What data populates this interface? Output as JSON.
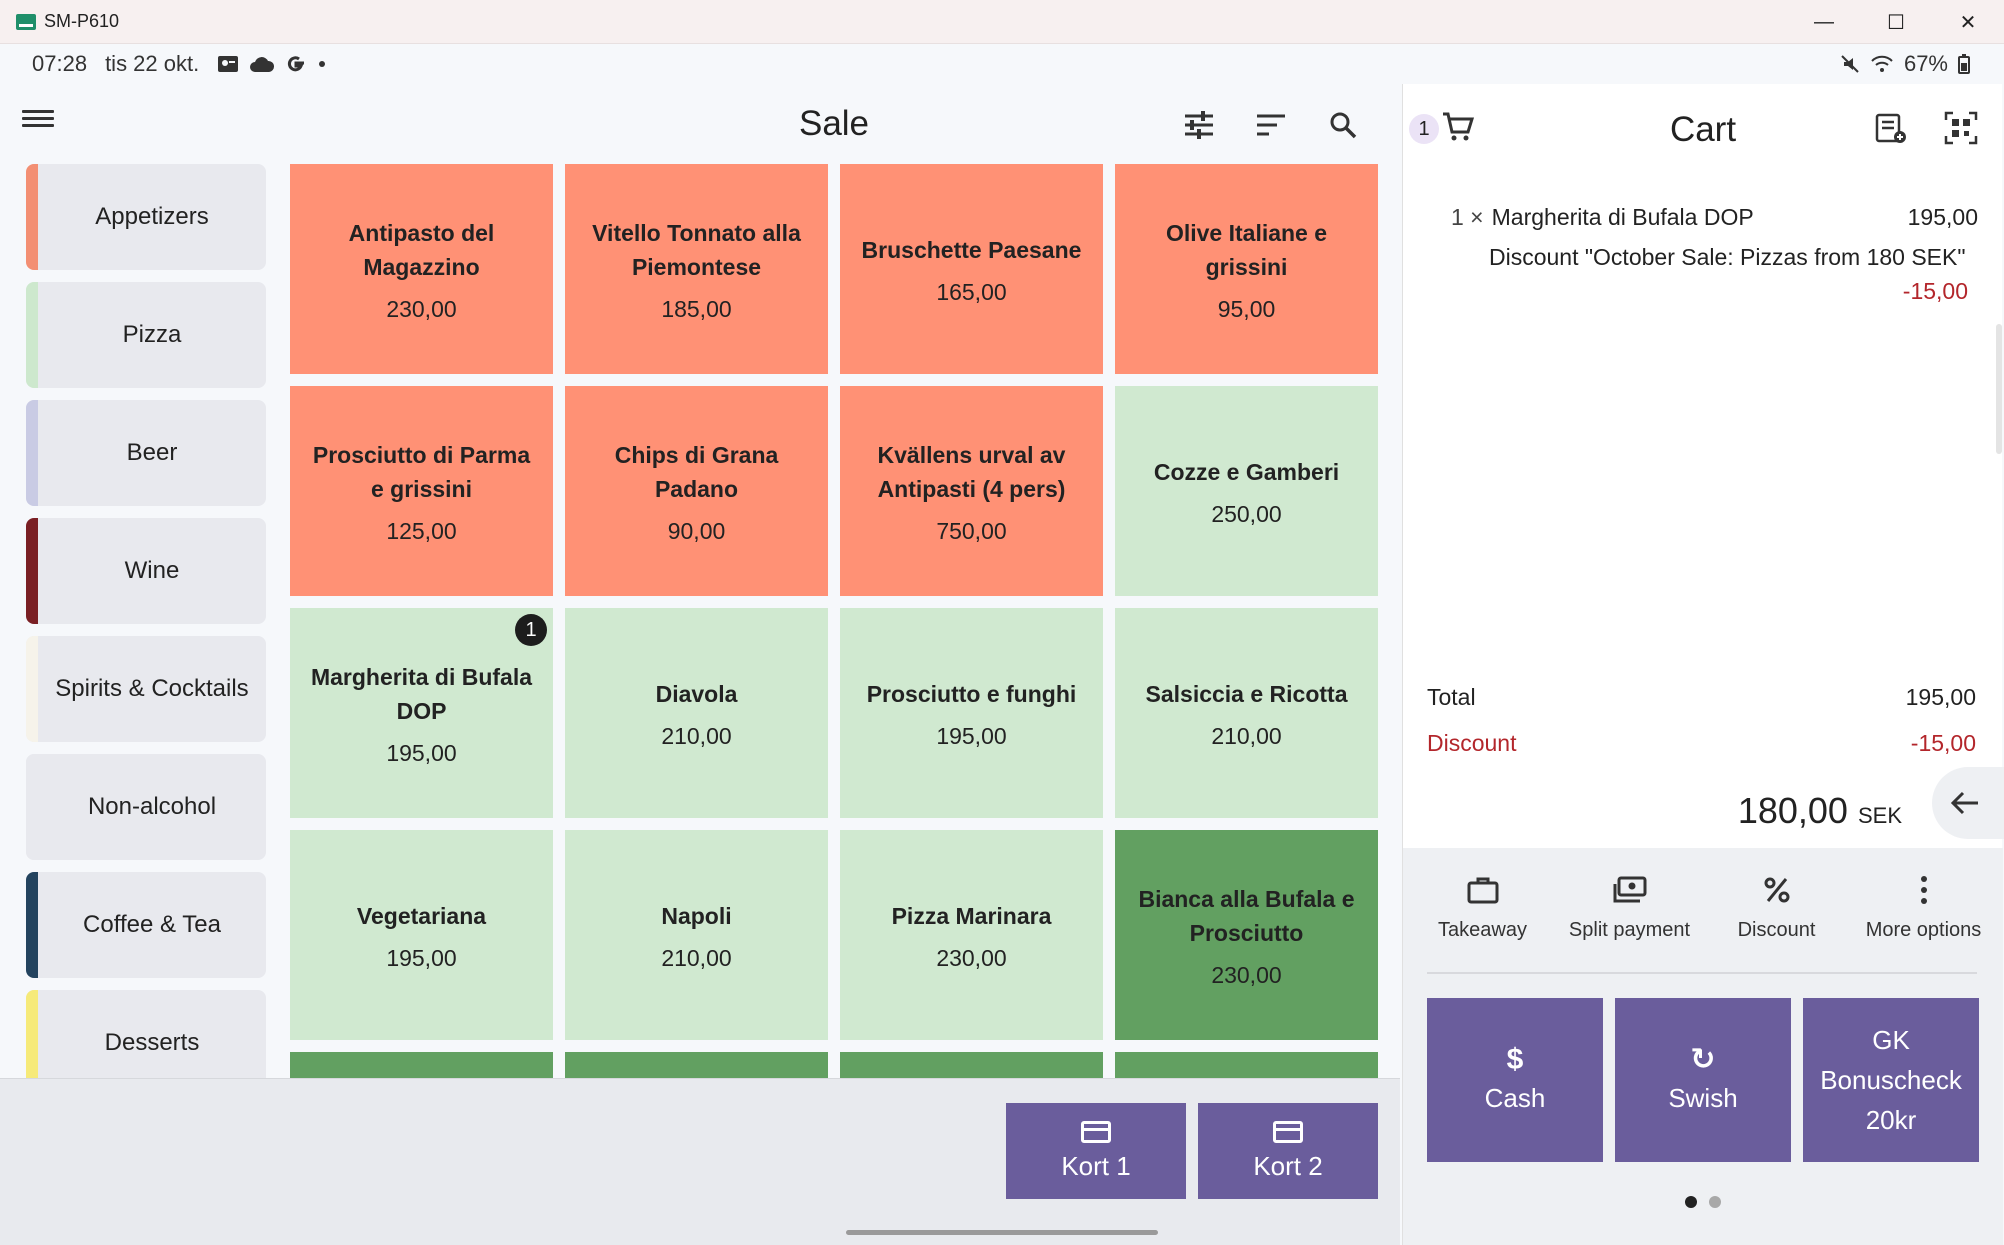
{
  "window": {
    "title": "SM-P610",
    "controls": [
      "—",
      "☐",
      "✕"
    ]
  },
  "statusbar": {
    "time": "07:28",
    "date": "tis 22 okt.",
    "battery": "67%"
  },
  "sale": {
    "title": "Sale",
    "categories": [
      {
        "label": "Appetizers",
        "color": "#f38f73"
      },
      {
        "label": "Pizza",
        "color": "#cde8cd"
      },
      {
        "label": "Beer",
        "color": "#c9cbe4"
      },
      {
        "label": "Wine",
        "color": "#7a1f24"
      },
      {
        "label": "Spirits & Cocktails",
        "color": "#f6f3ea"
      },
      {
        "label": "Non-alcohol",
        "color": "#e8e9ee"
      },
      {
        "label": "Coffee & Tea",
        "color": "#23435e"
      },
      {
        "label": "Desserts",
        "color": "#f6ea79"
      }
    ],
    "products": [
      {
        "name": "Antipasto del Magazzino",
        "price": "230,00",
        "color": "#ff9175"
      },
      {
        "name": "Vitello Tonnato alla Piemontese",
        "price": "185,00",
        "color": "#ff9175"
      },
      {
        "name": "Bruschette Paesane",
        "price": "165,00",
        "color": "#ff9175"
      },
      {
        "name": "Olive Italiane e grissini",
        "price": "95,00",
        "color": "#ff9175"
      },
      {
        "name": "Prosciutto di Parma e grissini",
        "price": "125,00",
        "color": "#ff9175"
      },
      {
        "name": "Chips di Grana Padano",
        "price": "90,00",
        "color": "#ff9175"
      },
      {
        "name": "Kvällens urval av Antipasti (4 pers)",
        "price": "750,00",
        "color": "#ff9175"
      },
      {
        "name": "Cozze e Gamberi",
        "price": "250,00",
        "color": "#d0e9d0"
      },
      {
        "name": "Margherita di Bufala DOP",
        "price": "195,00",
        "color": "#d0e9d0",
        "badge": "1"
      },
      {
        "name": "Diavola",
        "price": "210,00",
        "color": "#d0e9d0"
      },
      {
        "name": "Prosciutto e funghi",
        "price": "195,00",
        "color": "#d0e9d0"
      },
      {
        "name": "Salsiccia e Ricotta",
        "price": "210,00",
        "color": "#d0e9d0"
      },
      {
        "name": "Vegetariana",
        "price": "195,00",
        "color": "#d0e9d0"
      },
      {
        "name": "Napoli",
        "price": "210,00",
        "color": "#d0e9d0"
      },
      {
        "name": "Pizza Marinara",
        "price": "230,00",
        "color": "#d0e9d0"
      },
      {
        "name": "Bianca alla Bufala e Prosciutto",
        "price": "230,00",
        "color": "#62a061"
      }
    ],
    "stub_color": "#62a061",
    "card_buttons": [
      "Kort 1",
      "Kort 2"
    ]
  },
  "cart": {
    "count": "1",
    "title": "Cart",
    "line": {
      "qty": "1 ×",
      "name": "Margherita di Bufala DOP",
      "price": "195,00",
      "discount_text": "Discount \"October Sale: Pizzas from 180 SEK\"",
      "discount_amount": "-15,00"
    },
    "total_label": "Total",
    "total_value": "195,00",
    "discount_label": "Discount",
    "discount_value": "-15,00",
    "grand_total": "180,00",
    "currency": "SEK",
    "actions": [
      "Takeaway",
      "Split payment",
      "Discount",
      "More options"
    ],
    "payments": [
      {
        "label": "Cash",
        "icon": "$"
      },
      {
        "label": "Swish",
        "icon": "↻"
      },
      {
        "label": "GK Bonuscheck 20kr",
        "icon": ""
      }
    ]
  }
}
